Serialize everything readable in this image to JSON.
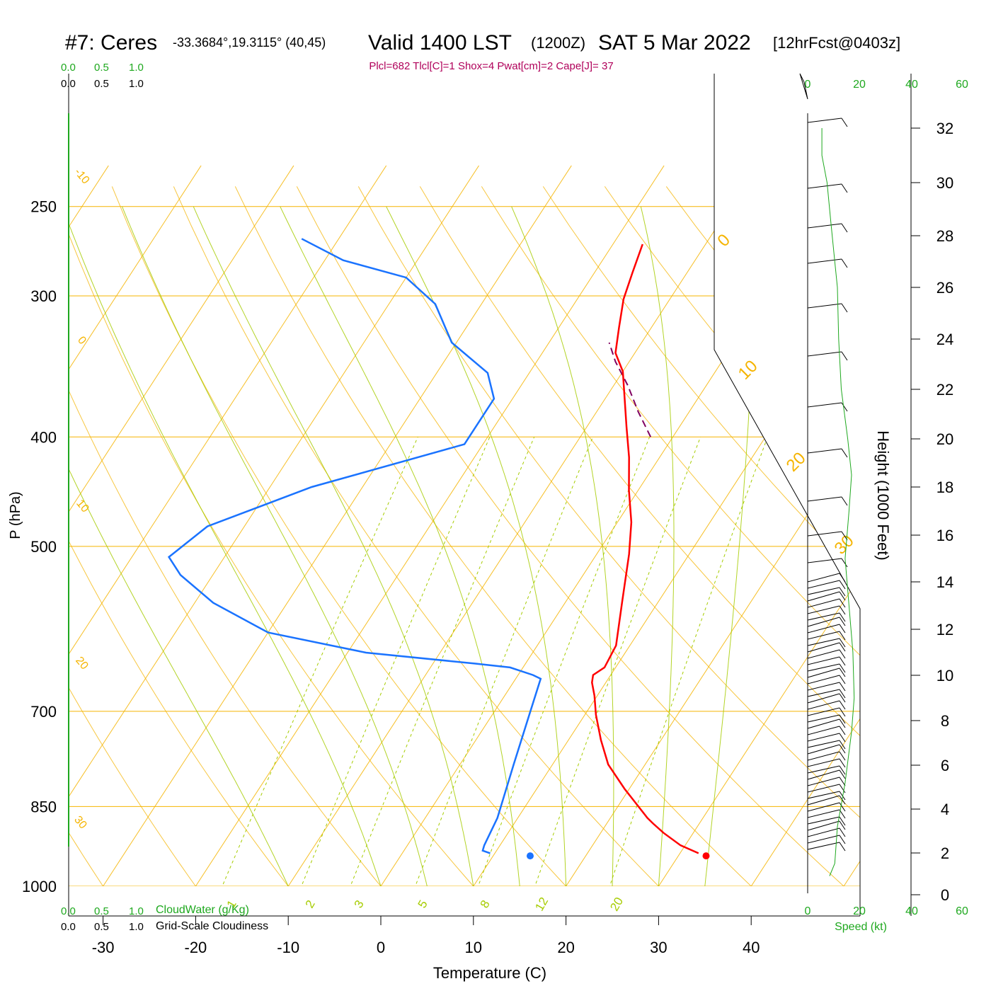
{
  "header": {
    "station": "#7: Ceres",
    "coords": "-33.3684°,19.3115° (40,45)",
    "valid_main": "Valid 1400 LST",
    "valid_z": "(1200Z)",
    "date": "SAT 5 Mar 2022",
    "forecast": "[12hrFcst@0403z]",
    "indices": "Plcl=682 Tlcl[C]=1 Shox=4 Pwat[cm]=2 Cape[J]= 37"
  },
  "colors": {
    "isobar": "#f5b400",
    "dry_adiabat": "#f5b400",
    "isotherm": "#f5b400",
    "moist_adiabat": "#a6cc00",
    "mixing_ratio": "#a6cc00",
    "temperature": "#ff0000",
    "dewpoint": "#1a73ff",
    "parcel": "#800060",
    "wind_profile": "#1ea81e",
    "cloud_scale": "#1ea81e",
    "indices_text": "#b0005a"
  },
  "chart_data": {
    "type": "line",
    "title": "#7: Ceres -33.3684°,19.3115° (40,45) Valid 1400 LST (1200Z) SAT 5 Mar 2022 [12hrFcst@0403z]",
    "xlabel": "Temperature (C)",
    "ylabel": "P (hPa)",
    "y2label": "Height (1000 Feet)",
    "x_ticks": [
      "-30",
      "-20",
      "-10",
      "0",
      "10",
      "20",
      "30",
      "40"
    ],
    "p_ticks": [
      "250",
      "300",
      "400",
      "500",
      "700",
      "850",
      "1000"
    ],
    "height_ticks": [
      "0",
      "2",
      "4",
      "6",
      "8",
      "10",
      "12",
      "14",
      "16",
      "18",
      "20",
      "22",
      "24",
      "26",
      "28",
      "30",
      "32"
    ],
    "isotherm_labels": [
      "-10",
      "0",
      "10",
      "20",
      "30",
      "0",
      "10",
      "20",
      "30"
    ],
    "mixing_ratio_labels": [
      "1",
      "2",
      "3",
      "5",
      "8",
      "12",
      "20"
    ],
    "cloud_scale_labels": [
      "0.0",
      "0.5",
      "1.0"
    ],
    "speed_ticks": [
      "0",
      "20",
      "40",
      "60"
    ],
    "cloudwater_label": "CloudWater (g/Kg)",
    "cloudiness_label": "Grid-Scale Cloudiness",
    "speed_label": "Speed (kt)",
    "surface_points": {
      "temperature": 33,
      "dewpoint": 14
    },
    "series": [
      {
        "key": "temperature",
        "points": [
          [
            32.0,
            935
          ],
          [
            29.5,
            920
          ],
          [
            26.8,
            897
          ],
          [
            25.0,
            880
          ],
          [
            24.0,
            870
          ],
          [
            19.5,
            820
          ],
          [
            16.0,
            780
          ],
          [
            13.5,
            742
          ],
          [
            11.2,
            705
          ],
          [
            9.7,
            678
          ],
          [
            8.5,
            660
          ],
          [
            8.1,
            650
          ],
          [
            8.8,
            640
          ],
          [
            8.5,
            612
          ],
          [
            6.1,
            560
          ],
          [
            3.5,
            508
          ],
          [
            1.5,
            476
          ],
          [
            -1.0,
            446
          ],
          [
            -3.3,
            417
          ],
          [
            -5.7,
            392
          ],
          [
            -8.1,
            368
          ],
          [
            -10.0,
            350
          ],
          [
            -12.1,
            337
          ],
          [
            -13.5,
            320
          ],
          [
            -15.0,
            302
          ],
          [
            -15.9,
            286
          ],
          [
            -16.8,
            270
          ]
        ]
      },
      {
        "key": "dewpoint",
        "points": [
          [
            9.5,
            935
          ],
          [
            8.5,
            930
          ],
          [
            8.3,
            920
          ],
          [
            7.8,
            870
          ],
          [
            5.8,
            780
          ],
          [
            4.0,
            705
          ],
          [
            2.7,
            655
          ],
          [
            1.6,
            650
          ],
          [
            -1.4,
            640
          ],
          [
            -5.5,
            635
          ],
          [
            -18.0,
            621
          ],
          [
            -30.0,
            596
          ],
          [
            -38.0,
            561
          ],
          [
            -43.5,
            530
          ],
          [
            -46.0,
            511
          ],
          [
            -44.0,
            480
          ],
          [
            -35.5,
            443
          ],
          [
            -22.0,
            406
          ],
          [
            -22.0,
            370
          ],
          [
            -24.5,
            351
          ],
          [
            -30.5,
            330
          ],
          [
            -35.0,
            305
          ],
          [
            -40.0,
            289
          ],
          [
            -48.0,
            279
          ],
          [
            -54.0,
            267
          ]
        ]
      },
      {
        "key": "parcel",
        "points": [
          [
            -2.4,
            400
          ],
          [
            -5.5,
            380
          ],
          [
            -8.5,
            360
          ],
          [
            -11.5,
            343
          ],
          [
            -13.5,
            330
          ]
        ]
      }
    ],
    "wind_profile_kt": [
      [
        8.5,
        0.9
      ],
      [
        10.5,
        1.5
      ],
      [
        11.5,
        3.2
      ],
      [
        14.5,
        5.2
      ],
      [
        17,
        7.5
      ],
      [
        18,
        9
      ],
      [
        17.5,
        11
      ],
      [
        16,
        13
      ],
      [
        14.5,
        15
      ],
      [
        16,
        17
      ],
      [
        17,
        18.5
      ],
      [
        15.5,
        20
      ],
      [
        13,
        22
      ],
      [
        12,
        24
      ],
      [
        11.5,
        26
      ],
      [
        10.5,
        27
      ],
      [
        9,
        28.5
      ],
      [
        7.5,
        30
      ],
      [
        5.5,
        31
      ],
      [
        5.5,
        32.5
      ]
    ],
    "grid": true,
    "legend": "none"
  }
}
